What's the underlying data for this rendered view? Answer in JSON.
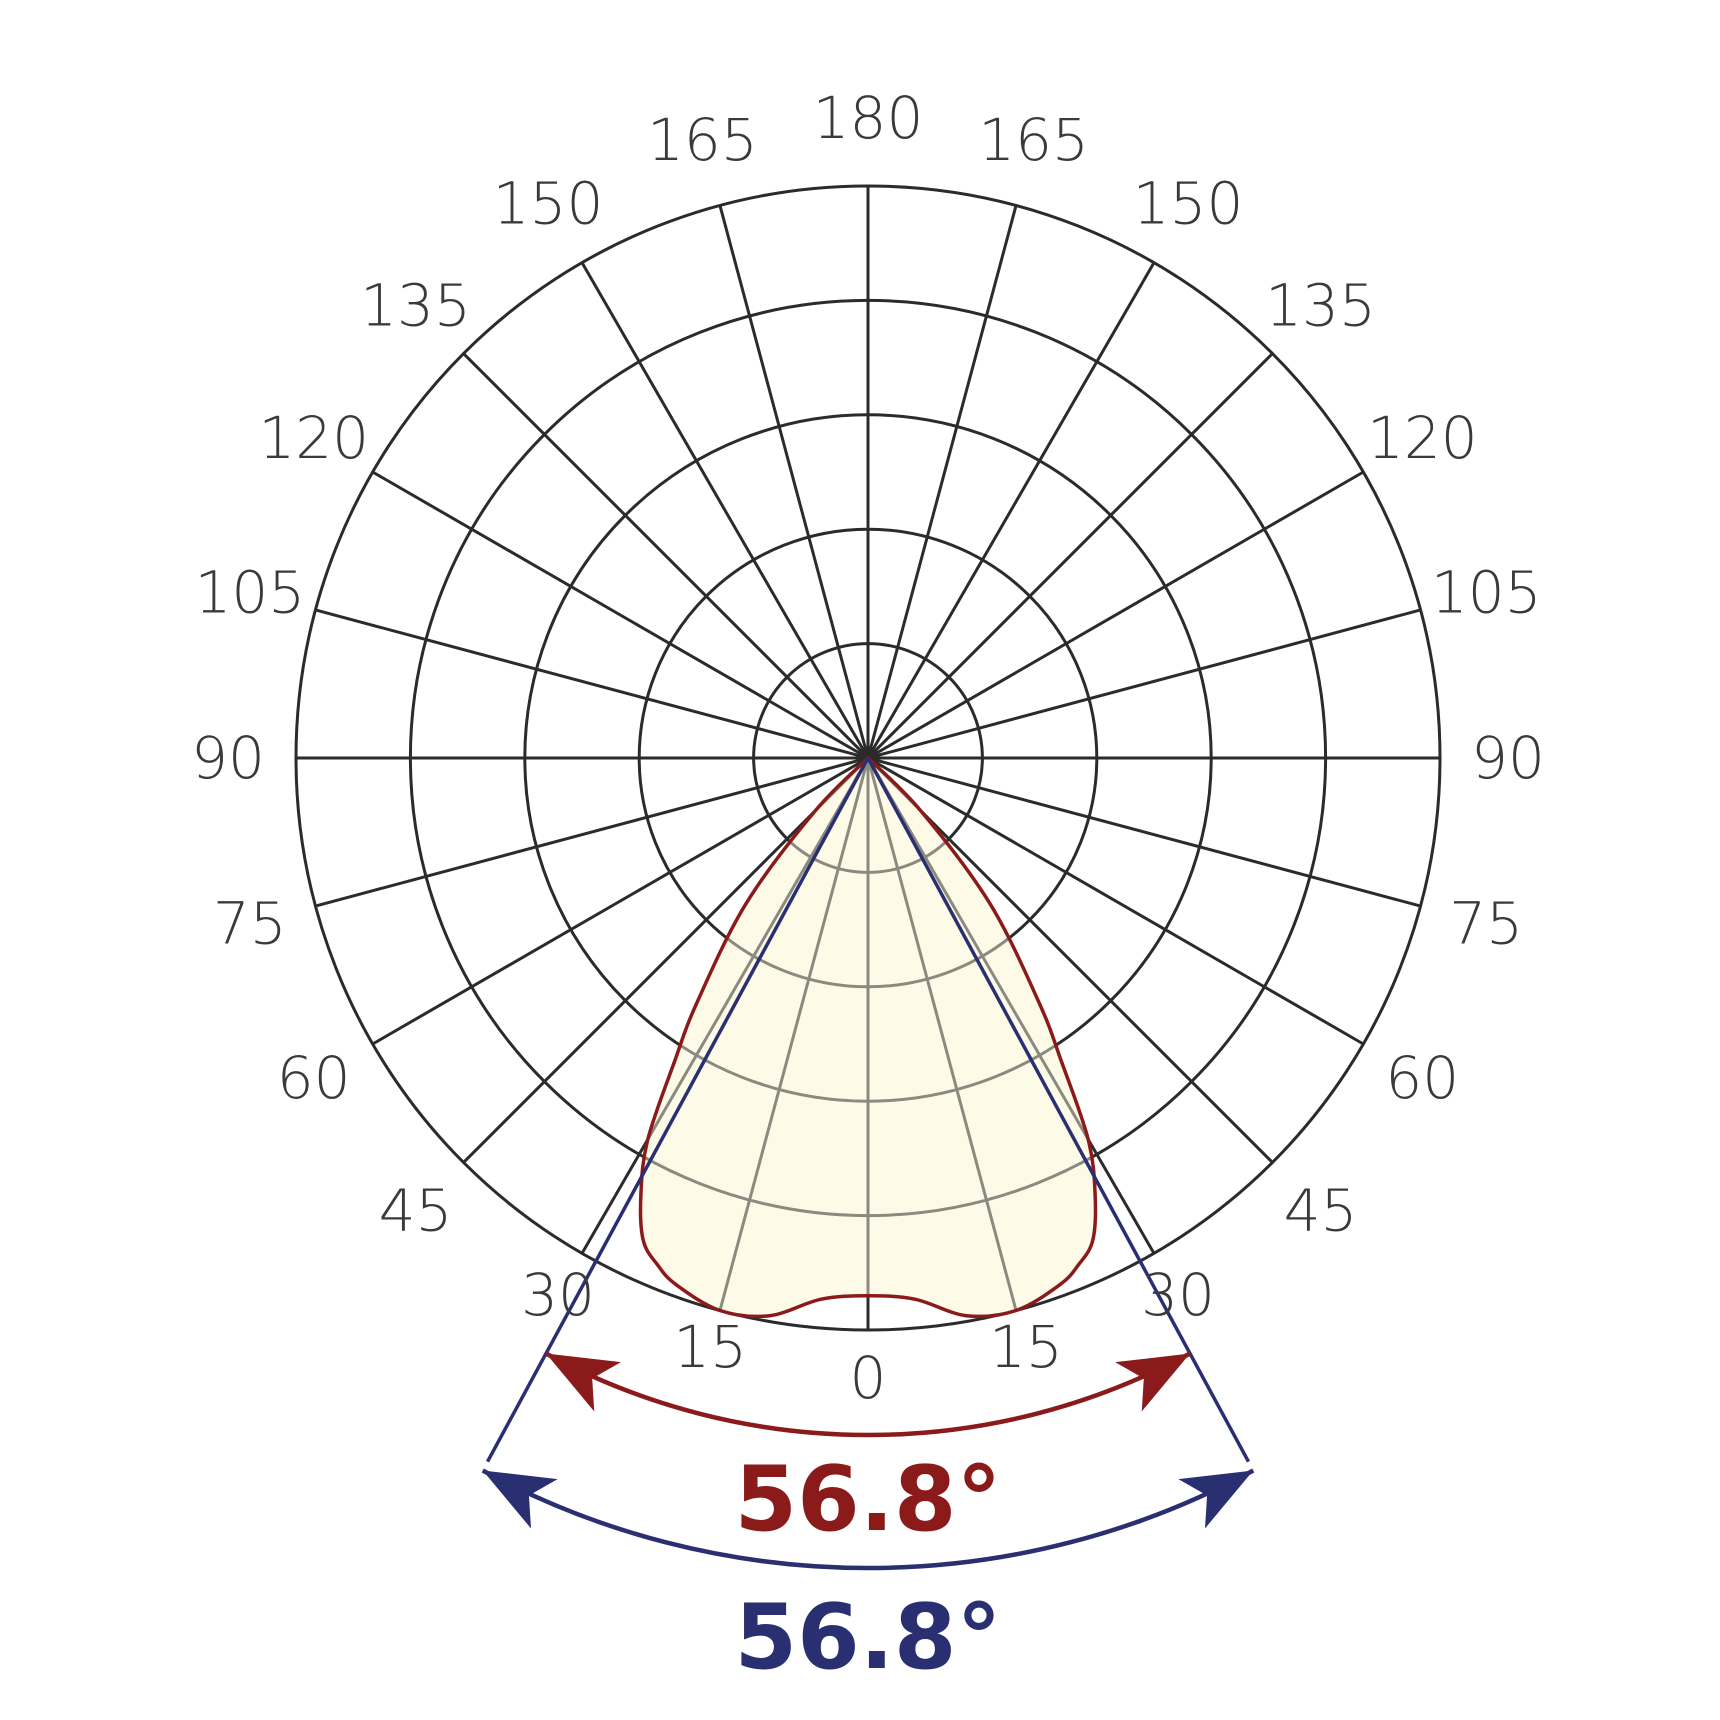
{
  "chart_data": {
    "type": "polar",
    "title": "",
    "angular_ticks_left": [
      "180",
      "165",
      "150",
      "135",
      "120",
      "105",
      "90",
      "75",
      "60",
      "45",
      "30",
      "15",
      "0"
    ],
    "angular_ticks_right": [
      "165",
      "150",
      "135",
      "120",
      "105",
      "90",
      "75",
      "60",
      "45",
      "30",
      "15"
    ],
    "radial_rings": 5,
    "grid": true,
    "series": [
      {
        "angles_deg": [
          0,
          5,
          10,
          15,
          20,
          22.5,
          25,
          27.5,
          30,
          32.5,
          35,
          40,
          45
        ],
        "relative_intensity": [
          0.94,
          0.95,
          0.99,
          1.0,
          0.98,
          0.96,
          0.93,
          0.86,
          0.77,
          0.63,
          0.52,
          0.33,
          0.13
        ],
        "color": "#8b1a1a",
        "fill": "#fdfbe8"
      }
    ],
    "beam_angles": [
      {
        "label": "56.8°",
        "color": "#8b1a1a"
      },
      {
        "label": "56.8°",
        "color": "#2a2f72"
      }
    ]
  }
}
